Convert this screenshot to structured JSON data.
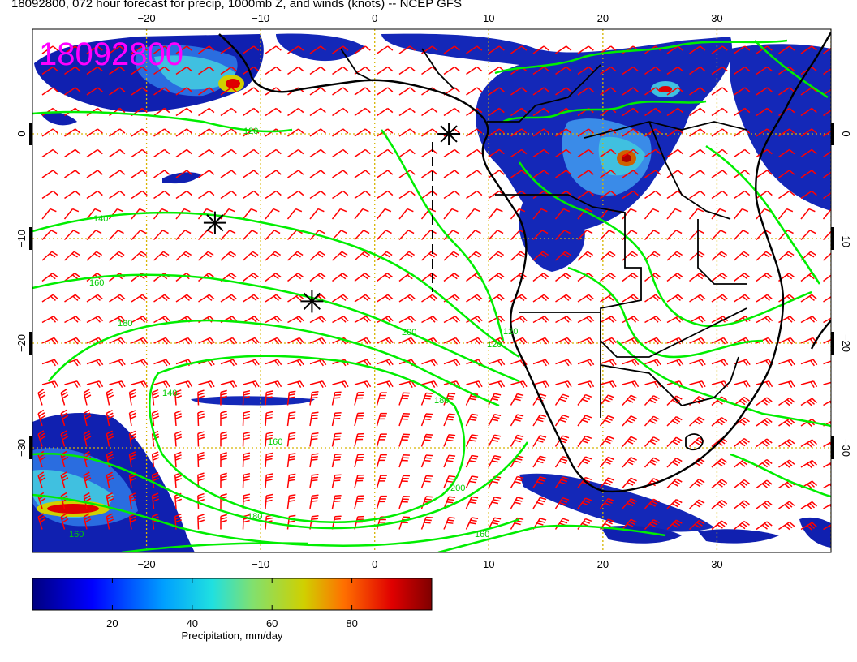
{
  "title": "18092800, 072 hour forecast for precip, 1000mb Z, and winds (knots) -- NCEP GFS",
  "stamp": "18092800",
  "map": {
    "lon_range": [
      -30,
      40
    ],
    "lat_range": [
      -40,
      10
    ],
    "lon_ticks": [
      -20,
      -10,
      0,
      10,
      20,
      30
    ],
    "lat_ticks": [
      0,
      -10,
      -20,
      -30
    ],
    "lon_tick_labels": [
      "−20",
      "−10",
      "0",
      "10",
      "20",
      "30"
    ],
    "lat_tick_labels": [
      "0",
      "−10",
      "−20",
      "−30"
    ],
    "grid": "dotted",
    "grid_color": "#d6b400",
    "layers": {
      "precip_color": "shaded",
      "contours_color": "#00ee00",
      "wind_barbs_color": "#ff0000",
      "coastline_color": "#000000"
    },
    "contour_labels": [
      "120",
      "140",
      "160",
      "180",
      "200",
      "120",
      "140",
      "160",
      "180",
      "200",
      "160",
      "180",
      "160",
      "120"
    ],
    "high_pressure_markers": [
      {
        "lon": 6.5,
        "lat": 0
      },
      {
        "lon": -14,
        "lat": -8.5
      },
      {
        "lon": -5.5,
        "lat": -16
      }
    ]
  },
  "colorbar": {
    "label": "Precipitation, mm/day",
    "range": [
      0,
      100
    ],
    "ticks": [
      "20",
      "40",
      "60",
      "80"
    ],
    "tick_values": [
      20,
      40,
      60,
      80
    ],
    "colors": [
      "#00007f",
      "#0000ff",
      "#00a0ff",
      "#20e0e0",
      "#80e070",
      "#d0d000",
      "#ff7000",
      "#e00000",
      "#7f0000"
    ]
  }
}
